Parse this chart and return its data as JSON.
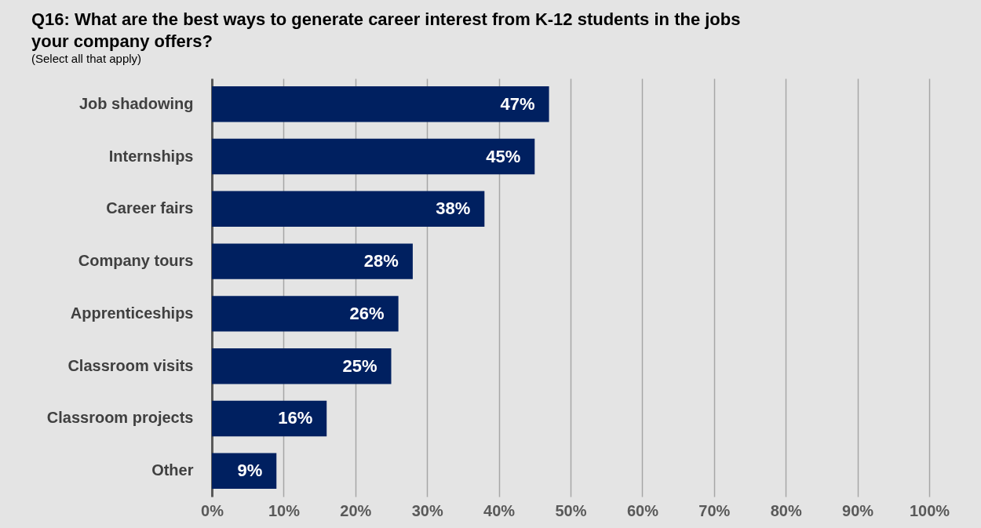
{
  "chart_data": {
    "type": "bar",
    "orientation": "horizontal",
    "title": "Q16: What are the best ways to generate career interest from K-12 students in the jobs your company offers?",
    "subtitle": "(Select all that apply)",
    "categories": [
      "Job shadowing",
      "Internships",
      "Career fairs",
      "Company tours",
      "Apprenticeships",
      "Classroom visits",
      "Classroom projects",
      "Other"
    ],
    "values": [
      47,
      45,
      38,
      28,
      26,
      25,
      16,
      9
    ],
    "value_labels": [
      "47%",
      "45%",
      "38%",
      "28%",
      "26%",
      "25%",
      "16%",
      "9%"
    ],
    "color": "#002060",
    "xlim": [
      0,
      100
    ],
    "xticks": [
      {
        "value": 0,
        "label": "0%"
      },
      {
        "value": 10,
        "label": "10%"
      },
      {
        "value": 20,
        "label": "20%"
      },
      {
        "value": 30,
        "label": "30%"
      },
      {
        "value": 40,
        "label": "40%"
      },
      {
        "value": 50,
        "label": "50%"
      },
      {
        "value": 60,
        "label": "60%"
      },
      {
        "value": 70,
        "label": "70%"
      },
      {
        "value": 80,
        "label": "80%"
      },
      {
        "value": 90,
        "label": "90%"
      },
      {
        "value": 100,
        "label": "100%"
      }
    ],
    "grid": "x"
  }
}
